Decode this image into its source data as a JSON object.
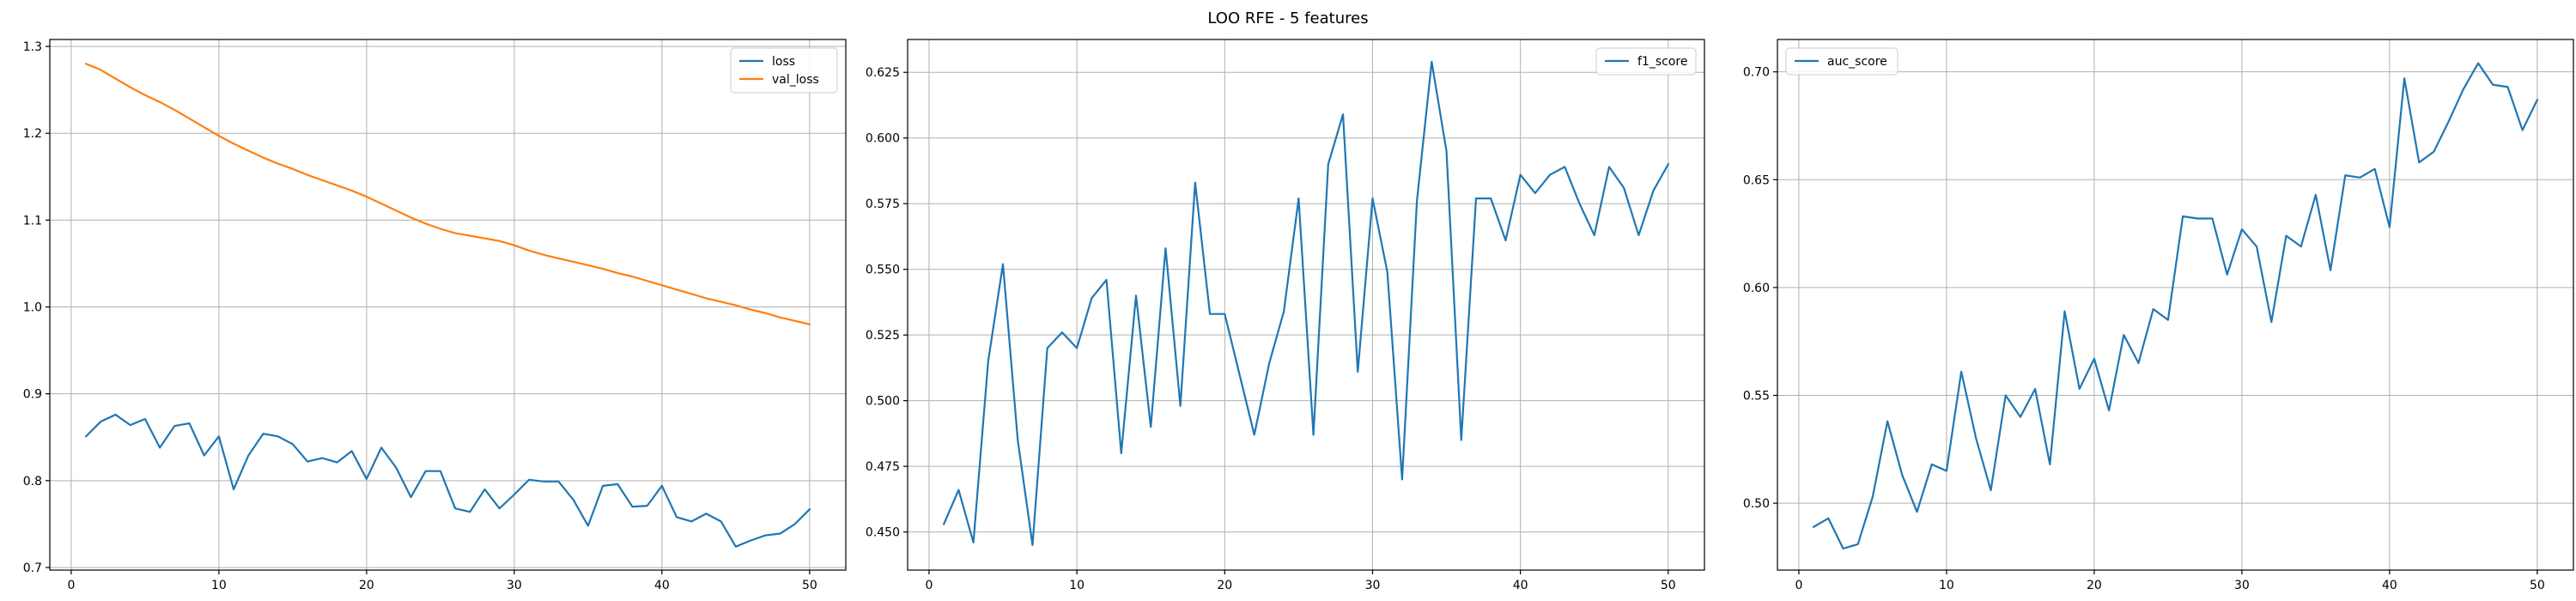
{
  "figure": {
    "title": "LOO RFE - 5 features"
  },
  "chart_data": [
    {
      "type": "line",
      "title": "",
      "xlabel": "",
      "ylabel": "",
      "xlim": [
        -1.45,
        52.45
      ],
      "ylim": [
        0.697,
        1.308
      ],
      "xticks": [
        0,
        10,
        20,
        30,
        40,
        50
      ],
      "xtick_labels": [
        "0",
        "10",
        "20",
        "30",
        "40",
        "50"
      ],
      "yticks": [
        0.7,
        0.8,
        0.9,
        1.0,
        1.1,
        1.2,
        1.3
      ],
      "ytick_labels": [
        "0.7",
        "0.8",
        "0.9",
        "1.0",
        "1.1",
        "1.2",
        "1.3"
      ],
      "grid": true,
      "legend_position": "top-right",
      "x": [
        1,
        2,
        3,
        4,
        5,
        6,
        7,
        8,
        9,
        10,
        11,
        12,
        13,
        14,
        15,
        16,
        17,
        18,
        19,
        20,
        21,
        22,
        23,
        24,
        25,
        26,
        27,
        28,
        29,
        30,
        31,
        32,
        33,
        34,
        35,
        36,
        37,
        38,
        39,
        40,
        41,
        42,
        43,
        44,
        45,
        46,
        47,
        48,
        49,
        50
      ],
      "series": [
        {
          "name": "loss",
          "color": "#1f77b4",
          "values": [
            0.851,
            0.868,
            0.876,
            0.864,
            0.871,
            0.838,
            0.863,
            0.866,
            0.829,
            0.851,
            0.79,
            0.829,
            0.854,
            0.851,
            0.842,
            0.822,
            0.826,
            0.821,
            0.834,
            0.802,
            0.838,
            0.815,
            0.781,
            0.811,
            0.811,
            0.768,
            0.764,
            0.79,
            0.768,
            0.784,
            0.801,
            0.799,
            0.799,
            0.778,
            0.748,
            0.794,
            0.796,
            0.77,
            0.771,
            0.794,
            0.758,
            0.753,
            0.762,
            0.753,
            0.724,
            0.731,
            0.737,
            0.739,
            0.75,
            0.767
          ]
        },
        {
          "name": "val_loss",
          "color": "#ff7f0e",
          "values": [
            1.28,
            1.273,
            1.263,
            1.253,
            1.244,
            1.236,
            1.227,
            1.217,
            1.207,
            1.197,
            1.188,
            1.18,
            1.172,
            1.165,
            1.159,
            1.152,
            1.146,
            1.14,
            1.134,
            1.127,
            1.119,
            1.111,
            1.103,
            1.096,
            1.09,
            1.085,
            1.082,
            1.079,
            1.076,
            1.071,
            1.065,
            1.06,
            1.056,
            1.052,
            1.048,
            1.044,
            1.039,
            1.035,
            1.03,
            1.025,
            1.02,
            1.015,
            1.01,
            1.006,
            1.002,
            0.997,
            0.993,
            0.988,
            0.984,
            0.98
          ]
        }
      ]
    },
    {
      "type": "line",
      "title": "",
      "xlabel": "",
      "ylabel": "",
      "xlim": [
        -1.45,
        52.45
      ],
      "ylim": [
        0.4355,
        0.6375
      ],
      "xticks": [
        0,
        10,
        20,
        30,
        40,
        50
      ],
      "xtick_labels": [
        "0",
        "10",
        "20",
        "30",
        "40",
        "50"
      ],
      "yticks": [
        0.45,
        0.475,
        0.5,
        0.525,
        0.55,
        0.575,
        0.6,
        0.625
      ],
      "ytick_labels": [
        "0.450",
        "0.475",
        "0.500",
        "0.525",
        "0.550",
        "0.575",
        "0.600",
        "0.625"
      ],
      "grid": true,
      "legend_position": "top-right",
      "x": [
        1,
        2,
        3,
        4,
        5,
        6,
        7,
        8,
        9,
        10,
        11,
        12,
        13,
        14,
        15,
        16,
        17,
        18,
        19,
        20,
        21,
        22,
        23,
        24,
        25,
        26,
        27,
        28,
        29,
        30,
        31,
        32,
        33,
        34,
        35,
        36,
        37,
        38,
        39,
        40,
        41,
        42,
        43,
        44,
        45,
        46,
        47,
        48,
        49,
        50
      ],
      "series": [
        {
          "name": "f1_score",
          "color": "#1f77b4",
          "values": [
            0.453,
            0.466,
            0.446,
            0.515,
            0.552,
            0.485,
            0.445,
            0.52,
            0.526,
            0.52,
            0.539,
            0.546,
            0.48,
            0.54,
            0.49,
            0.558,
            0.498,
            0.583,
            0.533,
            0.533,
            0.51,
            0.487,
            0.514,
            0.534,
            0.577,
            0.487,
            0.59,
            0.609,
            0.511,
            0.577,
            0.549,
            0.47,
            0.576,
            0.629,
            0.595,
            0.485,
            0.577,
            0.577,
            0.561,
            0.586,
            0.579,
            0.586,
            0.589,
            0.575,
            0.563,
            0.589,
            0.581,
            0.563,
            0.58,
            0.59
          ]
        }
      ]
    },
    {
      "type": "line",
      "title": "",
      "xlabel": "",
      "ylabel": "",
      "xlim": [
        -1.45,
        52.45
      ],
      "ylim": [
        0.469,
        0.715
      ],
      "xticks": [
        0,
        10,
        20,
        30,
        40,
        50
      ],
      "xtick_labels": [
        "0",
        "10",
        "20",
        "30",
        "40",
        "50"
      ],
      "yticks": [
        0.5,
        0.55,
        0.6,
        0.65,
        0.7
      ],
      "ytick_labels": [
        "0.50",
        "0.55",
        "0.60",
        "0.65",
        "0.70"
      ],
      "grid": true,
      "legend_position": "top-left",
      "x": [
        1,
        2,
        3,
        4,
        5,
        6,
        7,
        8,
        9,
        10,
        11,
        12,
        13,
        14,
        15,
        16,
        17,
        18,
        19,
        20,
        21,
        22,
        23,
        24,
        25,
        26,
        27,
        28,
        29,
        30,
        31,
        32,
        33,
        34,
        35,
        36,
        37,
        38,
        39,
        40,
        41,
        42,
        43,
        44,
        45,
        46,
        47,
        48,
        49,
        50
      ],
      "series": [
        {
          "name": "auc_score",
          "color": "#1f77b4",
          "values": [
            0.489,
            0.493,
            0.479,
            0.481,
            0.503,
            0.538,
            0.513,
            0.496,
            0.518,
            0.515,
            0.561,
            0.53,
            0.506,
            0.55,
            0.54,
            0.553,
            0.518,
            0.589,
            0.553,
            0.567,
            0.543,
            0.578,
            0.565,
            0.59,
            0.585,
            0.633,
            0.632,
            0.632,
            0.606,
            0.627,
            0.619,
            0.584,
            0.624,
            0.619,
            0.643,
            0.608,
            0.652,
            0.651,
            0.655,
            0.628,
            0.697,
            0.658,
            0.663,
            0.677,
            0.692,
            0.704,
            0.694,
            0.693,
            0.673,
            0.687
          ]
        }
      ]
    }
  ]
}
